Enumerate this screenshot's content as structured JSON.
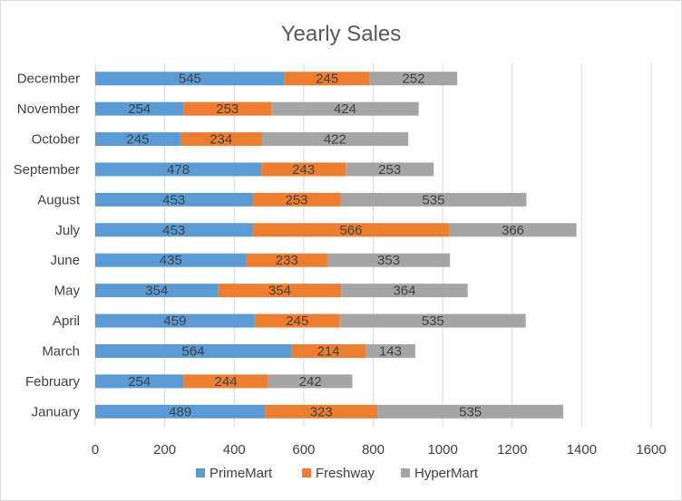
{
  "chart_data": {
    "type": "bar",
    "orientation": "horizontal",
    "stacked": true,
    "title": "Yearly Sales",
    "categories": [
      "January",
      "February",
      "March",
      "April",
      "May",
      "June",
      "July",
      "August",
      "September",
      "October",
      "November",
      "December"
    ],
    "series": [
      {
        "name": "PrimeMart",
        "color": "#5b9bd5",
        "values": [
          489,
          254,
          564,
          459,
          354,
          435,
          453,
          453,
          478,
          245,
          254,
          545
        ]
      },
      {
        "name": "Freshway",
        "color": "#ed7d31",
        "values": [
          323,
          244,
          214,
          245,
          354,
          233,
          566,
          253,
          243,
          234,
          253,
          245
        ]
      },
      {
        "name": "HyperMart",
        "color": "#a5a5a5",
        "values": [
          535,
          242,
          143,
          535,
          364,
          353,
          366,
          535,
          253,
          422,
          424,
          252
        ]
      }
    ],
    "xlim": [
      0,
      1600
    ],
    "xticks": [
      0,
      200,
      400,
      600,
      800,
      1000,
      1200,
      1400,
      1600
    ],
    "grid": true,
    "legend_position": "bottom",
    "data_labels": true
  }
}
